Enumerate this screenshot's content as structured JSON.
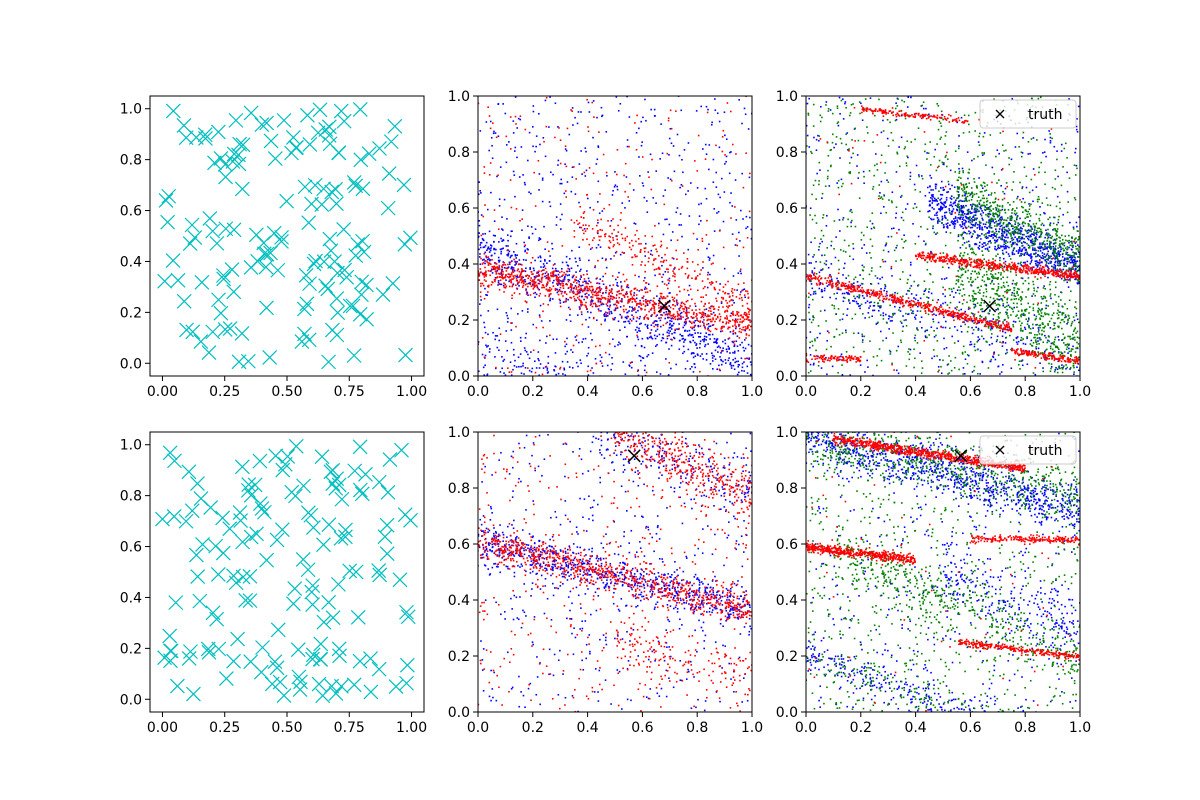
{
  "figure": {
    "background": "#ffffff",
    "legend_label": "truth"
  },
  "colors": {
    "cyan": "#00bfbf",
    "blue": "#0000ff",
    "red": "#ff0000",
    "green": "#008000",
    "black": "#000000"
  },
  "chart_data": [
    {
      "panel": "row1-col1",
      "type": "scatter",
      "marker": "x",
      "color": "#00bfbf",
      "xlim": [
        -0.05,
        1.05
      ],
      "ylim": [
        -0.05,
        1.05
      ],
      "xticks": [
        "0.00",
        "0.25",
        "0.50",
        "0.75",
        "1.00"
      ],
      "yticks": [
        "0.0",
        "0.2",
        "0.4",
        "0.6",
        "0.8",
        "1.0"
      ],
      "points_count": 150,
      "distribution": "uniform over [0,1] x [0,1]",
      "grid": false
    },
    {
      "panel": "row1-col2",
      "type": "scatter",
      "xlim": [
        0,
        1
      ],
      "ylim": [
        0,
        1
      ],
      "xticks": [
        "0.0",
        "0.2",
        "0.4",
        "0.6",
        "0.8",
        "1.0"
      ],
      "yticks": [
        "0.0",
        "0.2",
        "0.4",
        "0.6",
        "0.8",
        "1.0"
      ],
      "series": [
        {
          "color": "blue",
          "bands": [
            {
              "x0": 0.0,
              "y0": 0.45,
              "slope": -0.4,
              "spread": 0.05,
              "n": 700
            },
            {
              "x0": 0.0,
              "y0": 0.05,
              "slope": -0.25,
              "spread": 0.08,
              "n": 400
            }
          ],
          "background_n": 600
        },
        {
          "color": "red",
          "bands": [
            {
              "x0": 0.0,
              "y0": 0.38,
              "slope": -0.2,
              "spread": 0.03,
              "n": 900
            },
            {
              "x0": 0.35,
              "y0": 0.55,
              "slope": -0.45,
              "spread": 0.04,
              "n": 250
            }
          ],
          "background_n": 250
        }
      ],
      "truth": {
        "x": 0.68,
        "y": 0.25
      },
      "grid": false
    },
    {
      "panel": "row1-col3",
      "type": "scatter",
      "xlim": [
        0,
        1
      ],
      "ylim": [
        0,
        1
      ],
      "xticks": [
        "0.0",
        "0.2",
        "0.4",
        "0.6",
        "0.8",
        "1.0"
      ],
      "yticks": [
        "0.0",
        "0.2",
        "0.4",
        "0.6",
        "0.8",
        "1.0"
      ],
      "series": [
        {
          "color": "blue",
          "bands": [
            {
              "x0": 0.45,
              "y0": 0.62,
              "slope": -0.42,
              "spread": 0.04,
              "n": 800
            },
            {
              "x0": 0.0,
              "y0": 0.36,
              "slope": -0.3,
              "spread": 0.05,
              "n": 300
            }
          ],
          "background_n": 500
        },
        {
          "color": "green",
          "bands": [
            {
              "x0": 0.55,
              "y0": 0.65,
              "slope": -0.5,
              "spread": 0.05,
              "n": 500
            },
            {
              "x0": 0.55,
              "y0": 0.38,
              "slope": -0.6,
              "spread": 0.07,
              "n": 500
            }
          ],
          "background_n": 800
        },
        {
          "color": "red",
          "lines": [
            {
              "x0": 0.0,
              "y0": 0.355,
              "slope": -0.25,
              "spread": 0.008,
              "n": 500,
              "xmax": 0.75
            },
            {
              "x0": 0.4,
              "y0": 0.43,
              "slope": -0.12,
              "spread": 0.008,
              "n": 500,
              "xmax": 1.0
            },
            {
              "x0": 0.0,
              "y0": 0.065,
              "slope": -0.02,
              "spread": 0.006,
              "n": 100,
              "xmax": 0.2
            },
            {
              "x0": 0.75,
              "y0": 0.09,
              "slope": -0.15,
              "spread": 0.006,
              "n": 150,
              "xmax": 1.0
            },
            {
              "x0": 0.2,
              "y0": 0.955,
              "slope": -0.12,
              "spread": 0.006,
              "n": 150,
              "xmax": 0.6
            }
          ],
          "background_n": 60
        }
      ],
      "truth": {
        "x": 0.67,
        "y": 0.25
      },
      "legend": {
        "label": "truth",
        "marker": "x",
        "placement": "upper right"
      },
      "grid": false
    },
    {
      "panel": "row2-col1",
      "type": "scatter",
      "marker": "x",
      "color": "#00bfbf",
      "xlim": [
        -0.05,
        1.05
      ],
      "ylim": [
        -0.05,
        1.05
      ],
      "xticks": [
        "0.00",
        "0.25",
        "0.50",
        "0.75",
        "1.00"
      ],
      "yticks": [
        "0.0",
        "0.2",
        "0.4",
        "0.6",
        "0.8",
        "1.0"
      ],
      "points_count": 150,
      "distribution": "uniform over [0,1] x [0,1]",
      "grid": false
    },
    {
      "panel": "row2-col2",
      "type": "scatter",
      "xlim": [
        0,
        1
      ],
      "ylim": [
        0,
        1
      ],
      "xticks": [
        "0.0",
        "0.2",
        "0.4",
        "0.6",
        "0.8",
        "1.0"
      ],
      "yticks": [
        "0.0",
        "0.2",
        "0.4",
        "0.6",
        "0.8",
        "1.0"
      ],
      "series": [
        {
          "color": "blue",
          "bands": [
            {
              "x0": 0.0,
              "y0": 0.61,
              "slope": -0.25,
              "spread": 0.035,
              "n": 700
            },
            {
              "x0": 0.4,
              "y0": 1.0,
              "slope": -0.35,
              "spread": 0.05,
              "n": 200
            }
          ],
          "background_n": 450
        },
        {
          "color": "red",
          "bands": [
            {
              "x0": 0.0,
              "y0": 0.61,
              "slope": -0.25,
              "spread": 0.03,
              "n": 800
            },
            {
              "x0": 0.5,
              "y0": 1.0,
              "slope": -0.45,
              "spread": 0.05,
              "n": 400
            },
            {
              "x0": 0.5,
              "y0": 0.25,
              "slope": -0.25,
              "spread": 0.05,
              "n": 150
            }
          ],
          "background_n": 350
        }
      ],
      "truth": {
        "x": 0.57,
        "y": 0.915
      },
      "grid": false
    },
    {
      "panel": "row2-col3",
      "type": "scatter",
      "xlim": [
        0,
        1
      ],
      "ylim": [
        0,
        1
      ],
      "xticks": [
        "0.0",
        "0.2",
        "0.4",
        "0.6",
        "0.8",
        "1.0"
      ],
      "yticks": [
        "0.0",
        "0.2",
        "0.4",
        "0.6",
        "0.8",
        "1.0"
      ],
      "series": [
        {
          "color": "blue",
          "bands": [
            {
              "x0": 0.0,
              "y0": 0.98,
              "slope": -0.25,
              "spread": 0.04,
              "n": 900
            },
            {
              "x0": 0.0,
              "y0": 0.2,
              "slope": -0.35,
              "spread": 0.035,
              "n": 350
            },
            {
              "x0": 0.5,
              "y0": 0.5,
              "slope": -0.45,
              "spread": 0.06,
              "n": 250
            }
          ],
          "background_n": 350
        },
        {
          "color": "green",
          "bands": [
            {
              "x0": 0.0,
              "y0": 0.98,
              "slope": -0.2,
              "spread": 0.05,
              "n": 500
            },
            {
              "x0": 0.1,
              "y0": 0.58,
              "slope": -0.45,
              "spread": 0.05,
              "n": 450
            },
            {
              "x0": 0.0,
              "y0": 0.2,
              "slope": -0.35,
              "spread": 0.04,
              "n": 150
            }
          ],
          "background_n": 700
        },
        {
          "color": "red",
          "lines": [
            {
              "x0": 0.1,
              "y0": 0.975,
              "slope": -0.15,
              "spread": 0.008,
              "n": 700,
              "xmax": 0.8
            },
            {
              "x0": 0.0,
              "y0": 0.59,
              "slope": -0.12,
              "spread": 0.008,
              "n": 500,
              "xmax": 0.4
            },
            {
              "x0": 0.6,
              "y0": 0.62,
              "slope": -0.02,
              "spread": 0.006,
              "n": 200,
              "xmax": 1.0
            },
            {
              "x0": 0.55,
              "y0": 0.25,
              "slope": -0.12,
              "spread": 0.006,
              "n": 250,
              "xmax": 1.0
            }
          ],
          "background_n": 60
        }
      ],
      "truth": {
        "x": 0.565,
        "y": 0.915
      },
      "legend": {
        "label": "truth",
        "marker": "x",
        "placement": "upper right"
      },
      "grid": false
    }
  ]
}
